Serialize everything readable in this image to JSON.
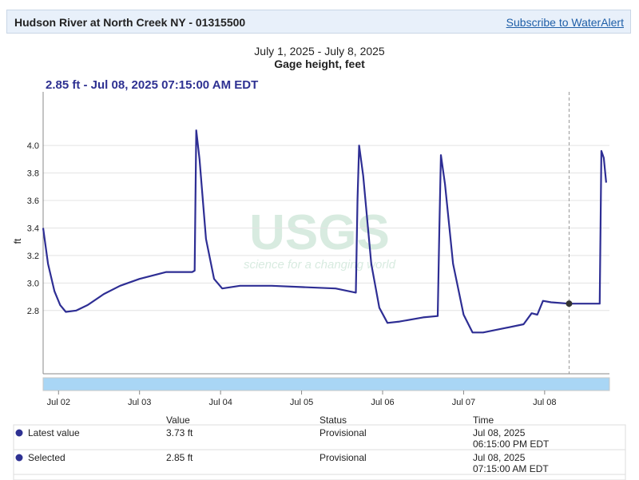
{
  "header": {
    "title": "Hudson River at North Creek NY - 01315500",
    "link": "Subscribe to WaterAlert"
  },
  "chart_data": {
    "type": "line",
    "title": "July 1, 2025 - July 8, 2025",
    "subtitle": "Gage height, feet",
    "highlight": "2.85 ft - Jul 08, 2025 07:15:00 AM EDT",
    "y_label": "ft",
    "watermark": [
      "USGS",
      "science for a changing world"
    ],
    "color": "#2e2e94",
    "x": [
      1.81,
      1.87,
      1.95,
      2.02,
      2.09,
      2.22,
      2.36,
      2.56,
      2.76,
      3.0,
      3.33,
      3.65,
      3.68,
      3.69,
      3.7,
      3.74,
      3.82,
      3.92,
      4.02,
      4.24,
      4.63,
      5.02,
      5.42,
      5.67,
      5.69,
      5.71,
      5.76,
      5.86,
      5.96,
      6.06,
      6.21,
      6.5,
      6.68,
      6.7,
      6.72,
      6.77,
      6.87,
      7.0,
      7.11,
      7.24,
      7.49,
      7.74,
      7.84,
      7.91,
      7.98,
      8.08,
      8.3,
      8.68,
      8.7,
      8.73,
      8.76
    ],
    "values": [
      3.4,
      3.14,
      2.94,
      2.84,
      2.79,
      2.8,
      2.84,
      2.92,
      2.98,
      3.03,
      3.08,
      3.08,
      3.09,
      3.61,
      4.11,
      3.9,
      3.32,
      3.03,
      2.96,
      2.98,
      2.98,
      2.97,
      2.96,
      2.93,
      3.61,
      4.0,
      3.78,
      3.14,
      2.82,
      2.71,
      2.72,
      2.75,
      2.76,
      3.38,
      3.93,
      3.72,
      3.14,
      2.77,
      2.64,
      2.64,
      2.67,
      2.7,
      2.78,
      2.77,
      2.87,
      2.86,
      2.85,
      2.85,
      3.96,
      3.91,
      3.73
    ],
    "selected": {
      "x": 8.302,
      "value": 2.85
    },
    "xlim": [
      1.81,
      8.8
    ],
    "ylim": [
      2.34,
      4.39
    ],
    "xticks": [
      {
        "value": 2,
        "label": "Jul 02"
      },
      {
        "value": 3,
        "label": "Jul 03"
      },
      {
        "value": 4,
        "label": "Jul 04"
      },
      {
        "value": 5,
        "label": "Jul 05"
      },
      {
        "value": 6,
        "label": "Jul 06"
      },
      {
        "value": 7,
        "label": "Jul 07"
      },
      {
        "value": 8,
        "label": "Jul 08"
      }
    ],
    "yticks": [
      2.8,
      {
        "value": 3,
        "label": "3.0"
      },
      3.2,
      3.4,
      3.6,
      3.8,
      {
        "value": 4,
        "label": "4.0"
      }
    ],
    "grid": true
  },
  "table": {
    "columns": [
      "Value",
      "Status",
      "Time"
    ],
    "rows": [
      {
        "label": "Latest value",
        "value": "3.73 ft",
        "status": "Provisional",
        "time": [
          "Jul 08, 2025",
          "06:15:00 PM EDT"
        ]
      },
      {
        "label": "Selected",
        "value": "2.85 ft",
        "status": "Provisional",
        "time": [
          "Jul 08, 2025",
          "07:15:00 AM EDT"
        ]
      }
    ]
  }
}
